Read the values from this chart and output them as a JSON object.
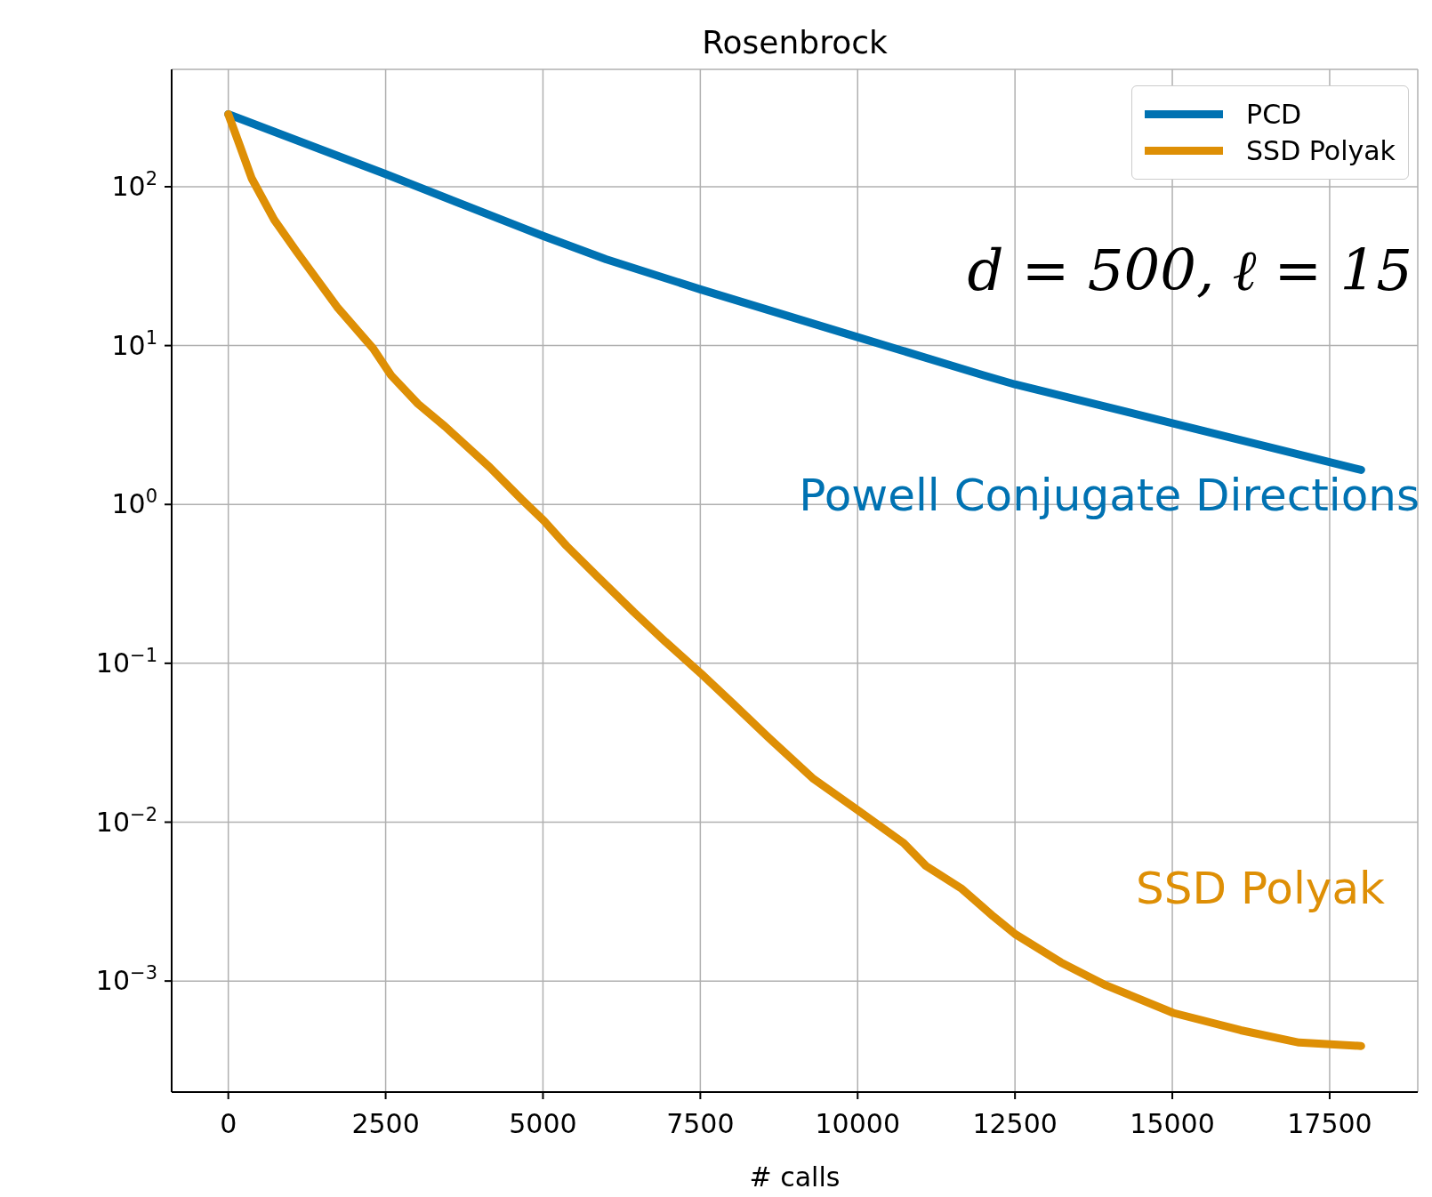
{
  "chart_data": {
    "type": "line",
    "title": "Rosenbrock",
    "xlabel": "# calls",
    "xlim": [
      -900,
      18900
    ],
    "xticks": [
      0,
      2500,
      5000,
      7500,
      10000,
      12500,
      15000,
      17500
    ],
    "ylim": [
      0.0002,
      548
    ],
    "log": "y",
    "yticks": [
      {
        "value": 0.001,
        "label": "10$^{−3}$"
      },
      {
        "value": 0.01,
        "label": "10$^{−2}$"
      },
      {
        "value": 0.1,
        "label": "10$^{−1}$"
      },
      {
        "value": 1,
        "label": "10$^{0}$"
      },
      {
        "value": 10,
        "label": "10$^{1}$"
      },
      {
        "value": 100,
        "label": "10$^{2}$"
      }
    ],
    "grid": true,
    "legend": "top right",
    "line_style": "solid",
    "marker": "none",
    "series": [
      {
        "name": "PCD",
        "color": "#0072b2",
        "x": [
          0,
          2500,
          5000,
          6000,
          7500,
          10000,
          12000,
          12500,
          15000,
          18000
        ],
        "values": [
          286,
          120,
          49,
          35,
          22.6,
          11.3,
          6.5,
          5.7,
          3.25,
          1.65
        ]
      },
      {
        "name": "SSD Polyak",
        "color": "#de8f05",
        "x": [
          0,
          186,
          371,
          729,
          1086,
          1729,
          2300,
          2586,
          3014,
          3443,
          4157,
          4657,
          5014,
          5371,
          5871,
          6443,
          6943,
          7514,
          8014,
          8586,
          9300,
          10014,
          10729,
          11086,
          11657,
          12157,
          12514,
          13229,
          13943,
          15014,
          16086,
          17014,
          18000
        ],
        "values": [
          286,
          180,
          113,
          62,
          39,
          17.5,
          9.6,
          6.5,
          4.3,
          3.1,
          1.71,
          1.08,
          0.79,
          0.55,
          0.35,
          0.21,
          0.137,
          0.086,
          0.056,
          0.034,
          0.0187,
          0.0118,
          0.0074,
          0.0053,
          0.0038,
          0.00255,
          0.00196,
          0.00131,
          0.00094,
          0.00063,
          0.00049,
          0.00041,
          0.00039
        ]
      }
    ],
    "annotations": [
      "d = 500, ℓ = 15",
      "Powell Conjugate Directions",
      "SSD Polyak"
    ]
  }
}
